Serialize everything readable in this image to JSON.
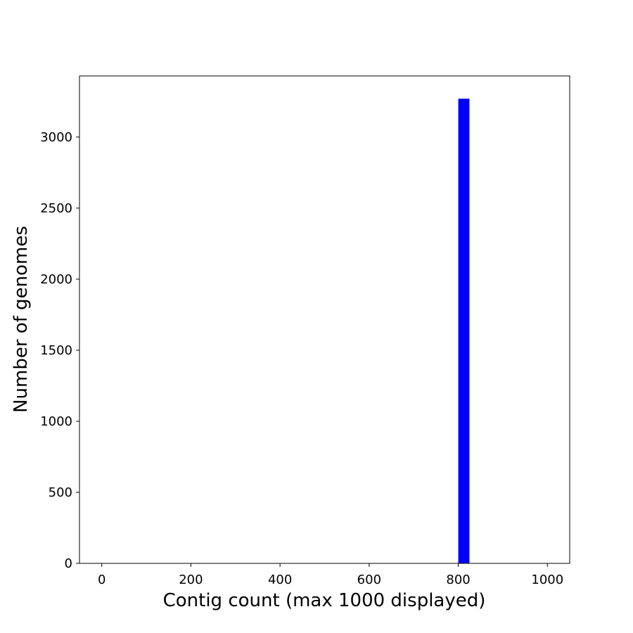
{
  "chart_data": {
    "type": "bar",
    "title": "",
    "xlabel": "Contig count (max 1000 displayed)",
    "ylabel": "Number of genomes",
    "xlim": [
      -50,
      1050
    ],
    "ylim": [
      0,
      3430
    ],
    "x_ticks": [
      0,
      200,
      400,
      600,
      800,
      1000
    ],
    "y_ticks": [
      0,
      500,
      1000,
      1500,
      2000,
      2500,
      3000
    ],
    "bins": [
      {
        "x0": 800,
        "x1": 825,
        "value": 3270
      }
    ],
    "grid": false,
    "legend": "none",
    "colors": {
      "bar": "#0000ff",
      "axis": "#000000",
      "background": "#ffffff"
    }
  }
}
